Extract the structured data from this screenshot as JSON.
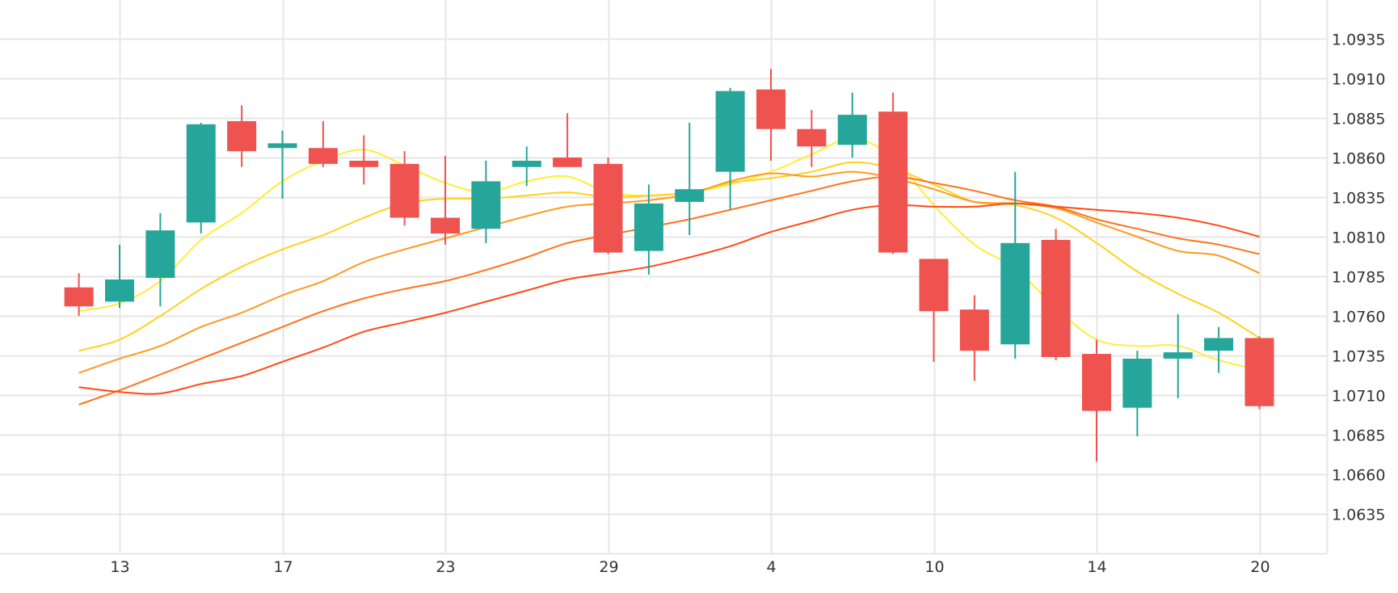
{
  "chart_data": {
    "type": "candlestick",
    "x_tick_labels": [
      {
        "index": 1,
        "label": "13"
      },
      {
        "index": 5,
        "label": "17"
      },
      {
        "index": 9,
        "label": "23"
      },
      {
        "index": 13,
        "label": "29"
      },
      {
        "index": 17,
        "label": "4"
      },
      {
        "index": 21,
        "label": "10"
      },
      {
        "index": 25,
        "label": "14"
      },
      {
        "index": 29,
        "label": "20"
      }
    ],
    "y_ticks": [
      1.0635,
      1.066,
      1.0685,
      1.071,
      1.0735,
      1.076,
      1.0785,
      1.081,
      1.0835,
      1.086,
      1.0885,
      1.091,
      1.0935
    ],
    "y_tick_labels": [
      "1.0635",
      "1.0660",
      "1.0685",
      "1.0710",
      "1.0735",
      "1.0760",
      "1.0785",
      "1.0810",
      "1.0835",
      "1.0860",
      "1.0885",
      "1.0910",
      "1.0935"
    ],
    "ylim": [
      1.061,
      1.096
    ],
    "x_range": [
      -1,
      30.65
    ],
    "grid": true,
    "up_color": "#26a69a",
    "down_color": "#ef5350",
    "candles": [
      {
        "i": 0,
        "o": 1.0778,
        "h": 1.0787,
        "l": 1.076,
        "c": 1.0766
      },
      {
        "i": 1,
        "o": 1.0769,
        "h": 1.0805,
        "l": 1.0765,
        "c": 1.0783
      },
      {
        "i": 2,
        "o": 1.0784,
        "h": 1.0825,
        "l": 1.0766,
        "c": 1.0814
      },
      {
        "i": 3,
        "o": 1.0819,
        "h": 1.0882,
        "l": 1.0812,
        "c": 1.0881
      },
      {
        "i": 4,
        "o": 1.0883,
        "h": 1.0893,
        "l": 1.0854,
        "c": 1.0864
      },
      {
        "i": 5,
        "o": 1.0866,
        "h": 1.0877,
        "l": 1.0834,
        "c": 1.0869
      },
      {
        "i": 6,
        "o": 1.0866,
        "h": 1.0883,
        "l": 1.0854,
        "c": 1.0856
      },
      {
        "i": 7,
        "o": 1.0858,
        "h": 1.0874,
        "l": 1.0843,
        "c": 1.0854
      },
      {
        "i": 8,
        "o": 1.0856,
        "h": 1.0864,
        "l": 1.0817,
        "c": 1.0822
      },
      {
        "i": 9,
        "o": 1.0822,
        "h": 1.0861,
        "l": 1.0805,
        "c": 1.0812
      },
      {
        "i": 10,
        "o": 1.0815,
        "h": 1.0858,
        "l": 1.0806,
        "c": 1.0845
      },
      {
        "i": 11,
        "o": 1.0854,
        "h": 1.0867,
        "l": 1.0842,
        "c": 1.0858
      },
      {
        "i": 12,
        "o": 1.086,
        "h": 1.0888,
        "l": 1.0855,
        "c": 1.0854
      },
      {
        "i": 13,
        "o": 1.0856,
        "h": 1.086,
        "l": 1.0799,
        "c": 1.08
      },
      {
        "i": 14,
        "o": 1.0801,
        "h": 1.0843,
        "l": 1.0786,
        "c": 1.0831
      },
      {
        "i": 15,
        "o": 1.0832,
        "h": 1.0882,
        "l": 1.0811,
        "c": 1.084
      },
      {
        "i": 16,
        "o": 1.0851,
        "h": 1.0904,
        "l": 1.0827,
        "c": 1.0902
      },
      {
        "i": 17,
        "o": 1.0903,
        "h": 1.0916,
        "l": 1.0858,
        "c": 1.0878
      },
      {
        "i": 18,
        "o": 1.0878,
        "h": 1.089,
        "l": 1.0854,
        "c": 1.0867
      },
      {
        "i": 19,
        "o": 1.0868,
        "h": 1.0901,
        "l": 1.086,
        "c": 1.0887
      },
      {
        "i": 20,
        "o": 1.0889,
        "h": 1.0901,
        "l": 1.0799,
        "c": 1.08
      },
      {
        "i": 21,
        "o": 1.0796,
        "h": 1.0796,
        "l": 1.0731,
        "c": 1.0763
      },
      {
        "i": 22,
        "o": 1.0764,
        "h": 1.0773,
        "l": 1.0719,
        "c": 1.0738
      },
      {
        "i": 23,
        "o": 1.0742,
        "h": 1.0851,
        "l": 1.0733,
        "c": 1.0806
      },
      {
        "i": 24,
        "o": 1.0808,
        "h": 1.0815,
        "l": 1.0732,
        "c": 1.0734
      },
      {
        "i": 25,
        "o": 1.0736,
        "h": 1.0745,
        "l": 1.0668,
        "c": 1.07
      },
      {
        "i": 26,
        "o": 1.0702,
        "h": 1.0738,
        "l": 1.0684,
        "c": 1.0733
      },
      {
        "i": 27,
        "o": 1.0733,
        "h": 1.0761,
        "l": 1.0708,
        "c": 1.0737
      },
      {
        "i": 28,
        "o": 1.0738,
        "h": 1.0753,
        "l": 1.0724,
        "c": 1.0746
      },
      {
        "i": 29,
        "o": 1.0746,
        "h": 1.0747,
        "l": 1.0701,
        "c": 1.0703
      }
    ],
    "series": [
      {
        "color": "#ffee33",
        "points": [
          [
            0,
            1.0763
          ],
          [
            1,
            1.0768
          ],
          [
            2,
            1.0782
          ],
          [
            3,
            1.0808
          ],
          [
            4,
            1.0825
          ],
          [
            5,
            1.0845
          ],
          [
            6,
            1.0858
          ],
          [
            7,
            1.0865
          ],
          [
            8,
            1.0855
          ],
          [
            9,
            1.0844
          ],
          [
            10,
            1.0838
          ],
          [
            11,
            1.0845
          ],
          [
            12,
            1.0848
          ],
          [
            13,
            1.0838
          ],
          [
            14,
            1.0836
          ],
          [
            15,
            1.0838
          ],
          [
            16,
            1.0843
          ],
          [
            17,
            1.0851
          ],
          [
            18,
            1.0862
          ],
          [
            19,
            1.0872
          ],
          [
            20,
            1.086
          ],
          [
            21,
            1.083
          ],
          [
            22,
            1.0805
          ],
          [
            23,
            1.079
          ],
          [
            24,
            1.0765
          ],
          [
            25,
            1.0745
          ],
          [
            26,
            1.0741
          ],
          [
            27,
            1.0741
          ],
          [
            28,
            1.0732
          ],
          [
            29,
            1.0726
          ]
        ]
      },
      {
        "color": "#ffd21a",
        "points": [
          [
            0,
            1.0738
          ],
          [
            1,
            1.0745
          ],
          [
            2,
            1.076
          ],
          [
            3,
            1.0777
          ],
          [
            4,
            1.0791
          ],
          [
            5,
            1.0802
          ],
          [
            6,
            1.0811
          ],
          [
            7,
            1.0822
          ],
          [
            8,
            1.0831
          ],
          [
            9,
            1.0834
          ],
          [
            10,
            1.0834
          ],
          [
            11,
            1.0836
          ],
          [
            12,
            1.0838
          ],
          [
            13,
            1.0835
          ],
          [
            14,
            1.0836
          ],
          [
            15,
            1.0838
          ],
          [
            16,
            1.0844
          ],
          [
            17,
            1.0847
          ],
          [
            18,
            1.0851
          ],
          [
            19,
            1.0857
          ],
          [
            20,
            1.0853
          ],
          [
            21,
            1.0843
          ],
          [
            22,
            1.0832
          ],
          [
            23,
            1.083
          ],
          [
            24,
            1.0822
          ],
          [
            25,
            1.0806
          ],
          [
            26,
            1.0788
          ],
          [
            27,
            1.0774
          ],
          [
            28,
            1.0762
          ],
          [
            29,
            1.0746
          ]
        ]
      },
      {
        "color": "#ff9a1f",
        "points": [
          [
            0,
            1.0724
          ],
          [
            1,
            1.0733
          ],
          [
            2,
            1.0741
          ],
          [
            3,
            1.0753
          ],
          [
            4,
            1.0762
          ],
          [
            5,
            1.0773
          ],
          [
            6,
            1.0782
          ],
          [
            7,
            1.0794
          ],
          [
            8,
            1.0802
          ],
          [
            9,
            1.0809
          ],
          [
            10,
            1.0816
          ],
          [
            11,
            1.0823
          ],
          [
            12,
            1.0829
          ],
          [
            13,
            1.0831
          ],
          [
            14,
            1.0833
          ],
          [
            15,
            1.0837
          ],
          [
            16,
            1.0845
          ],
          [
            17,
            1.085
          ],
          [
            18,
            1.0848
          ],
          [
            19,
            1.0851
          ],
          [
            20,
            1.0847
          ],
          [
            21,
            1.084
          ],
          [
            22,
            1.0832
          ],
          [
            23,
            1.0831
          ],
          [
            24,
            1.0828
          ],
          [
            25,
            1.0819
          ],
          [
            26,
            1.081
          ],
          [
            27,
            1.0801
          ],
          [
            28,
            1.0798
          ],
          [
            29,
            1.0787
          ]
        ]
      },
      {
        "color": "#ff7319",
        "points": [
          [
            0,
            1.0704
          ],
          [
            1,
            1.0713
          ],
          [
            2,
            1.0723
          ],
          [
            3,
            1.0733
          ],
          [
            4,
            1.0743
          ],
          [
            5,
            1.0753
          ],
          [
            6,
            1.0763
          ],
          [
            7,
            1.0771
          ],
          [
            8,
            1.0777
          ],
          [
            9,
            1.0782
          ],
          [
            10,
            1.0789
          ],
          [
            11,
            1.0797
          ],
          [
            12,
            1.0806
          ],
          [
            13,
            1.0811
          ],
          [
            14,
            1.0816
          ],
          [
            15,
            1.0821
          ],
          [
            16,
            1.0827
          ],
          [
            17,
            1.0833
          ],
          [
            18,
            1.0839
          ],
          [
            19,
            1.0845
          ],
          [
            20,
            1.0848
          ],
          [
            21,
            1.0844
          ],
          [
            22,
            1.0839
          ],
          [
            23,
            1.0833
          ],
          [
            24,
            1.0829
          ],
          [
            25,
            1.0821
          ],
          [
            26,
            1.0815
          ],
          [
            27,
            1.0809
          ],
          [
            28,
            1.0805
          ],
          [
            29,
            1.0799
          ]
        ]
      },
      {
        "color": "#ff4a14",
        "points": [
          [
            0,
            1.0715
          ],
          [
            1,
            1.0712
          ],
          [
            2,
            1.0711
          ],
          [
            3,
            1.0717
          ],
          [
            4,
            1.0722
          ],
          [
            5,
            1.0731
          ],
          [
            6,
            1.074
          ],
          [
            7,
            1.075
          ],
          [
            8,
            1.0756
          ],
          [
            9,
            1.0762
          ],
          [
            10,
            1.0769
          ],
          [
            11,
            1.0776
          ],
          [
            12,
            1.0783
          ],
          [
            13,
            1.0787
          ],
          [
            14,
            1.0791
          ],
          [
            15,
            1.0797
          ],
          [
            16,
            1.0804
          ],
          [
            17,
            1.0813
          ],
          [
            18,
            1.082
          ],
          [
            19,
            1.0827
          ],
          [
            20,
            1.083
          ],
          [
            21,
            1.0829
          ],
          [
            22,
            1.0829
          ],
          [
            23,
            1.0831
          ],
          [
            24,
            1.0829
          ],
          [
            25,
            1.0827
          ],
          [
            26,
            1.0825
          ],
          [
            27,
            1.0822
          ],
          [
            28,
            1.0817
          ],
          [
            29,
            1.081
          ]
        ]
      }
    ]
  }
}
